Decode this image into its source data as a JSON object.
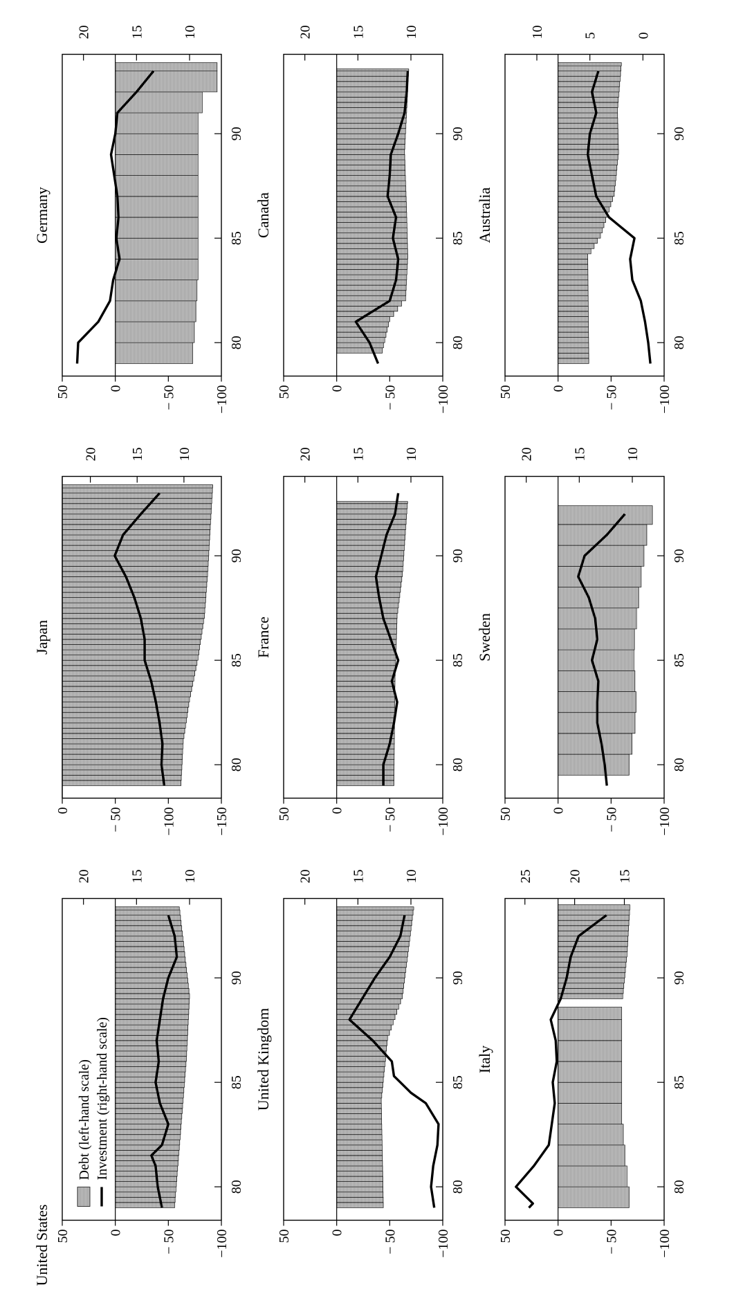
{
  "legend": {
    "debt": "Debt (left-hand scale)",
    "investment": "Investment (right-hand scale)"
  },
  "chart_data": [
    {
      "type": "bar",
      "title": "United States",
      "x_ticks": [
        "80",
        "85",
        "90"
      ],
      "left_axis": {
        "ticks": [
          "50",
          "0",
          "− 50",
          "−100"
        ],
        "values": [
          50,
          0,
          -50,
          -100
        ],
        "ylim": [
          -100,
          50
        ]
      },
      "right_axis": {
        "ticks": [
          "20",
          "15",
          "10"
        ],
        "values": [
          20,
          15,
          10
        ],
        "ylim": [
          7,
          22
        ]
      },
      "bars": [
        {
          "start": 1979,
          "end": 1993.4,
          "step": 0.25,
          "values": [
            [
              1979,
              -56
            ],
            [
              1986,
              -67
            ],
            [
              1989,
              -70
            ],
            [
              1993.4,
              -60
            ]
          ]
        }
      ],
      "line": [
        [
          1979,
          12.6
        ],
        [
          1980,
          13.0
        ],
        [
          1981,
          13.2
        ],
        [
          1981.5,
          13.6
        ],
        [
          1982,
          12.6
        ],
        [
          1983,
          12.0
        ],
        [
          1984,
          12.8
        ],
        [
          1985,
          13.2
        ],
        [
          1986,
          12.9
        ],
        [
          1987,
          13.1
        ],
        [
          1988,
          12.8
        ],
        [
          1989,
          12.5
        ],
        [
          1990,
          12.0
        ],
        [
          1991,
          11.2
        ],
        [
          1992,
          11.4
        ],
        [
          1993,
          12.0
        ]
      ]
    },
    {
      "type": "bar",
      "title": "Japan",
      "x_ticks": [
        "80",
        "85",
        "90"
      ],
      "left_axis": {
        "ticks": [
          "0",
          "− 50",
          "−100",
          "−150"
        ],
        "values": [
          0,
          -50,
          -100,
          -150
        ],
        "ylim": [
          -150,
          0
        ]
      },
      "right_axis": {
        "ticks": [
          "20",
          "15",
          "10"
        ],
        "values": [
          20,
          15,
          10
        ],
        "ylim": [
          6,
          23
        ]
      },
      "bars": [
        {
          "start": 1979,
          "end": 1993.4,
          "step": 0.25,
          "values": [
            [
              1979,
              -112
            ],
            [
              1981,
              -114
            ],
            [
              1983,
              -120
            ],
            [
              1985,
              -128
            ],
            [
              1987,
              -134
            ],
            [
              1989,
              -137
            ],
            [
              1993.4,
              -142
            ]
          ]
        }
      ],
      "line": [
        [
          1979,
          12.1
        ],
        [
          1980,
          12.4
        ],
        [
          1981,
          12.3
        ],
        [
          1982,
          12.6
        ],
        [
          1983,
          13.0
        ],
        [
          1984,
          13.5
        ],
        [
          1985,
          14.2
        ],
        [
          1986,
          14.2
        ],
        [
          1987,
          14.6
        ],
        [
          1988,
          15.3
        ],
        [
          1989,
          16.2
        ],
        [
          1990,
          17.4
        ],
        [
          1991,
          16.5
        ],
        [
          1992,
          14.6
        ],
        [
          1993,
          12.6
        ]
      ]
    },
    {
      "type": "bar",
      "title": "Germany",
      "x_ticks": [
        "80",
        "85",
        "90"
      ],
      "left_axis": {
        "ticks": [
          "50",
          "0",
          "− 50",
          "−100"
        ],
        "values": [
          50,
          0,
          -50,
          -100
        ],
        "ylim": [
          -100,
          50
        ]
      },
      "right_axis": {
        "ticks": [
          "20",
          "15",
          "10"
        ],
        "values": [
          20,
          15,
          10
        ],
        "ylim": [
          7,
          22
        ]
      },
      "bars": [
        {
          "start": 1979,
          "end": 1993.4,
          "step": 1,
          "values": [
            [
              1979,
              -73
            ],
            [
              1981,
              -76
            ],
            [
              1983,
              -78
            ],
            [
              1987,
              -78
            ],
            [
              1990,
              -78
            ],
            [
              1991,
              -82
            ],
            [
              1992,
              -96
            ],
            [
              1993.4,
              -96
            ]
          ]
        }
      ],
      "line": [
        [
          1979,
          20.6
        ],
        [
          1980,
          20.5
        ],
        [
          1981,
          18.6
        ],
        [
          1982,
          17.5
        ],
        [
          1983,
          17.2
        ],
        [
          1984,
          16.6
        ],
        [
          1985,
          16.9
        ],
        [
          1986,
          16.7
        ],
        [
          1987,
          16.8
        ],
        [
          1988,
          17.1
        ],
        [
          1989,
          17.4
        ],
        [
          1990,
          17.0
        ],
        [
          1991,
          16.8
        ],
        [
          1992,
          15.0
        ],
        [
          1993,
          13.4
        ]
      ]
    },
    {
      "type": "bar",
      "title": "United Kingdom",
      "x_ticks": [
        "80",
        "85",
        "90"
      ],
      "left_axis": {
        "ticks": [
          "50",
          "0",
          "− 50",
          "−100"
        ],
        "values": [
          50,
          0,
          -50,
          -100
        ],
        "ylim": [
          -100,
          50
        ]
      },
      "right_axis": {
        "ticks": [
          "20",
          "15",
          "10"
        ],
        "values": [
          20,
          15,
          10
        ],
        "ylim": [
          7,
          22
        ]
      },
      "bars": [
        {
          "start": 1979,
          "end": 1993.4,
          "step": 0.25,
          "values": [
            [
              1979,
              -44
            ],
            [
              1984,
              -42
            ],
            [
              1987,
              -48
            ],
            [
              1989,
              -62
            ],
            [
              1993.4,
              -73
            ]
          ]
        }
      ],
      "line": [
        [
          1979,
          7.8
        ],
        [
          1980,
          8.1
        ],
        [
          1981,
          7.9
        ],
        [
          1982,
          7.5
        ],
        [
          1983,
          7.4
        ],
        [
          1984,
          8.6
        ],
        [
          1984.5,
          10.0
        ],
        [
          1985,
          11.0
        ],
        [
          1985.3,
          11.6
        ],
        [
          1986,
          11.8
        ],
        [
          1987,
          13.6
        ],
        [
          1988,
          15.8
        ],
        [
          1989,
          14.6
        ],
        [
          1990,
          13.4
        ],
        [
          1991,
          12.0
        ],
        [
          1992,
          11.0
        ],
        [
          1993,
          10.6
        ]
      ]
    },
    {
      "type": "bar",
      "title": "France",
      "x_ticks": [
        "80",
        "85",
        "90"
      ],
      "left_axis": {
        "ticks": [
          "50",
          "0",
          "− 50",
          "−100"
        ],
        "values": [
          50,
          0,
          -50,
          -100
        ],
        "ylim": [
          -100,
          50
        ]
      },
      "right_axis": {
        "ticks": [
          "20",
          "15",
          "10"
        ],
        "values": [
          20,
          15,
          10
        ],
        "ylim": [
          7,
          22
        ]
      },
      "bars": [
        {
          "start": 1979,
          "end": 1992.6,
          "step": 0.25,
          "values": [
            [
              1979,
              -54
            ],
            [
              1984,
              -55
            ],
            [
              1987,
              -57
            ],
            [
              1989,
              -62
            ],
            [
              1992.6,
              -67
            ]
          ]
        }
      ],
      "line": [
        [
          1979,
          12.6
        ],
        [
          1980,
          12.6
        ],
        [
          1981,
          12.0
        ],
        [
          1982,
          11.6
        ],
        [
          1983,
          11.3
        ],
        [
          1984,
          11.8
        ],
        [
          1985,
          11.2
        ],
        [
          1986,
          11.9
        ],
        [
          1987,
          12.6
        ],
        [
          1988,
          13.0
        ],
        [
          1989,
          13.3
        ],
        [
          1990,
          12.8
        ],
        [
          1991,
          12.3
        ],
        [
          1992,
          11.5
        ],
        [
          1993,
          11.2
        ]
      ]
    },
    {
      "type": "bar",
      "title": "Canada",
      "x_ticks": [
        "80",
        "85",
        "90"
      ],
      "left_axis": {
        "ticks": [
          "50",
          "0",
          "− 50",
          "−100"
        ],
        "values": [
          50,
          0,
          -50,
          -100
        ],
        "ylim": [
          -100,
          50
        ]
      },
      "right_axis": {
        "ticks": [
          "20",
          "15",
          "10"
        ],
        "values": [
          20,
          15,
          10
        ],
        "ylim": [
          7,
          22
        ]
      },
      "bars": [
        {
          "start": 1979.5,
          "end": 1993.1,
          "step": 0.25,
          "values": [
            [
              1979.5,
              -43
            ],
            [
              1981,
              -50
            ],
            [
              1982,
              -65
            ],
            [
              1984,
              -67
            ],
            [
              1986,
              -66
            ],
            [
              1989,
              -64
            ],
            [
              1991,
              -66
            ],
            [
              1993.1,
              -68
            ]
          ]
        }
      ],
      "line": [
        [
          1979,
          13.1
        ],
        [
          1980,
          13.9
        ],
        [
          1981,
          15.2
        ],
        [
          1982,
          12.0
        ],
        [
          1983,
          11.4
        ],
        [
          1984,
          11.2
        ],
        [
          1985,
          11.7
        ],
        [
          1986,
          11.4
        ],
        [
          1987,
          12.2
        ],
        [
          1988,
          12.0
        ],
        [
          1989,
          11.9
        ],
        [
          1990,
          11.2
        ],
        [
          1991,
          10.6
        ],
        [
          1992,
          10.4
        ],
        [
          1993,
          10.3
        ]
      ]
    },
    {
      "type": "bar",
      "title": "Italy",
      "x_ticks": [
        "80",
        "85",
        "90"
      ],
      "left_axis": {
        "ticks": [
          "50",
          "0",
          "− 50",
          "−100"
        ],
        "values": [
          50,
          0,
          -50,
          -100
        ],
        "ylim": [
          -100,
          50
        ]
      },
      "right_axis": {
        "ticks": [
          "25",
          "20",
          "15"
        ],
        "values": [
          25,
          20,
          15
        ],
        "ylim": [
          11,
          27
        ]
      },
      "bars": [
        {
          "start": 1979,
          "end": 1988.6,
          "step": 1,
          "values": [
            [
              1979,
              -67
            ],
            [
              1981,
              -63
            ],
            [
              1983,
              -60
            ],
            [
              1988.6,
              -60
            ]
          ]
        },
        {
          "start": 1989,
          "end": 1993.5,
          "step": 0.25,
          "values": [
            [
              1989,
              -61
            ],
            [
              1991,
              -65
            ],
            [
              1993.5,
              -68
            ]
          ]
        }
      ],
      "line": [
        [
          1979,
          24.6
        ],
        [
          1979.2,
          24.2
        ],
        [
          1980,
          25.9
        ],
        [
          1981,
          24.1
        ],
        [
          1982,
          22.6
        ],
        [
          1983,
          22.3
        ],
        [
          1984,
          22.0
        ],
        [
          1985,
          22.2
        ],
        [
          1986,
          21.8
        ],
        [
          1987,
          21.9
        ],
        [
          1988,
          22.4
        ],
        [
          1989,
          21.4
        ],
        [
          1990,
          20.8
        ],
        [
          1991,
          20.4
        ],
        [
          1992,
          19.6
        ],
        [
          1993,
          16.8
        ]
      ]
    },
    {
      "type": "bar",
      "title": "Sweden",
      "x_ticks": [
        "80",
        "85",
        "90"
      ],
      "left_axis": {
        "ticks": [
          "50",
          "0",
          "− 50",
          "−100"
        ],
        "values": [
          50,
          0,
          -50,
          -100
        ],
        "ylim": [
          -100,
          50
        ]
      },
      "right_axis": {
        "ticks": [
          "20",
          "15",
          "10"
        ],
        "values": [
          20,
          15,
          10
        ],
        "ylim": [
          7,
          22
        ]
      },
      "bars": [
        {
          "start": 1979.5,
          "end": 1992.4,
          "step": 1,
          "values": [
            [
              1979.5,
              -67
            ],
            [
              1982,
              -74
            ],
            [
              1985,
              -71
            ],
            [
              1988,
              -77
            ],
            [
              1991,
              -85
            ],
            [
              1992.4,
              -96
            ]
          ]
        }
      ],
      "line": [
        [
          1979,
          12.4
        ],
        [
          1980,
          12.6
        ],
        [
          1981,
          12.9
        ],
        [
          1982,
          13.3
        ],
        [
          1983,
          13.3
        ],
        [
          1984,
          13.2
        ],
        [
          1985,
          13.8
        ],
        [
          1986,
          13.3
        ],
        [
          1987,
          13.5
        ],
        [
          1988,
          14.1
        ],
        [
          1989,
          15.1
        ],
        [
          1990,
          14.5
        ],
        [
          1991,
          12.4
        ],
        [
          1992,
          10.7
        ]
      ]
    },
    {
      "type": "bar",
      "title": "Australia",
      "x_ticks": [
        "80",
        "85",
        "90"
      ],
      "left_axis": {
        "ticks": [
          "50",
          "0",
          "− 50",
          "−100"
        ],
        "values": [
          50,
          0,
          -50,
          -100
        ],
        "ylim": [
          -100,
          50
        ]
      },
      "right_axis": {
        "ticks": [
          "10",
          "5",
          "0"
        ],
        "values": [
          10,
          5,
          0
        ],
        "ylim": [
          -2,
          13
        ]
      },
      "bars": [
        {
          "start": 1979,
          "end": 1993.4,
          "step": 0.25,
          "values": [
            [
              1979,
              -29
            ],
            [
              1984,
              -28
            ],
            [
              1985,
              -40
            ],
            [
              1987,
              -53
            ],
            [
              1989,
              -57
            ],
            [
              1991,
              -56
            ],
            [
              1993.4,
              -60
            ]
          ]
        }
      ],
      "line": [
        [
          1979,
          -0.7
        ],
        [
          1980,
          -0.5
        ],
        [
          1981,
          -0.2
        ],
        [
          1982,
          0.2
        ],
        [
          1983,
          1.0
        ],
        [
          1984,
          1.2
        ],
        [
          1985,
          0.8
        ],
        [
          1986,
          3.2
        ],
        [
          1987,
          4.4
        ],
        [
          1988,
          4.8
        ],
        [
          1989,
          5.2
        ],
        [
          1990,
          5.0
        ],
        [
          1991,
          4.4
        ],
        [
          1992,
          4.8
        ],
        [
          1993,
          4.2
        ]
      ]
    }
  ]
}
